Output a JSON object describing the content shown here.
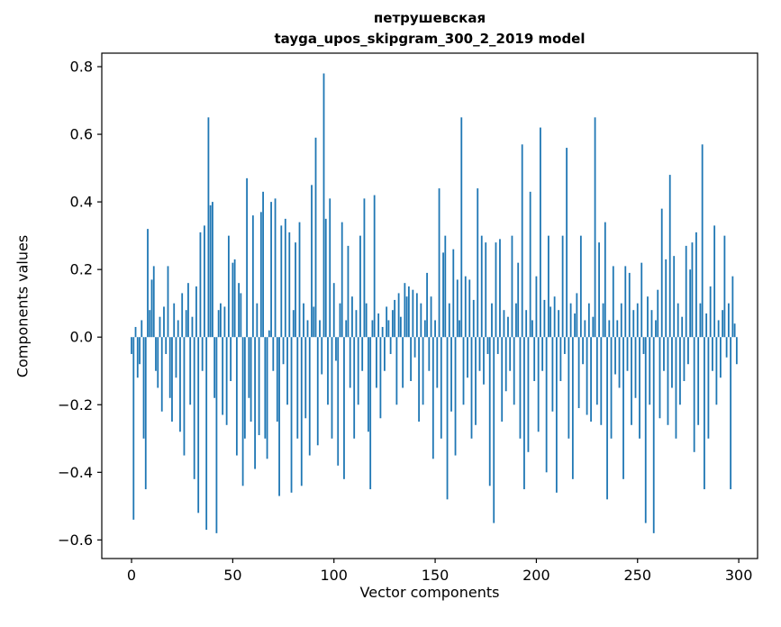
{
  "chart_data": {
    "type": "bar",
    "title": "петрушевская",
    "subtitle": "tayga_upos_skipgram_300_2_2019 model",
    "xlabel": "Vector components",
    "ylabel": "Components values",
    "bar_color": "#1f77b4",
    "grid": false,
    "legend": "none",
    "n_components": 300,
    "xlim": [
      -14.7,
      309.3
    ],
    "ylim": [
      -0.655,
      0.84
    ],
    "xticks": [
      0,
      50,
      100,
      150,
      200,
      250,
      300
    ],
    "yticks": [
      -0.6,
      -0.4,
      -0.2,
      0.0,
      0.2,
      0.4,
      0.6,
      0.8
    ],
    "values": [
      -0.05,
      -0.54,
      0.03,
      -0.12,
      -0.08,
      0.05,
      -0.3,
      -0.45,
      0.32,
      0.08,
      0.17,
      0.21,
      -0.1,
      -0.15,
      0.06,
      -0.22,
      0.09,
      -0.05,
      0.21,
      -0.18,
      -0.25,
      0.1,
      -0.12,
      0.05,
      -0.28,
      0.13,
      -0.35,
      0.08,
      0.16,
      -0.2,
      0.06,
      -0.42,
      0.15,
      -0.52,
      0.31,
      -0.1,
      0.33,
      -0.57,
      0.65,
      0.39,
      0.4,
      -0.18,
      -0.58,
      0.08,
      0.1,
      -0.23,
      0.09,
      -0.26,
      0.3,
      -0.13,
      0.22,
      0.23,
      -0.35,
      0.16,
      0.13,
      -0.44,
      -0.3,
      0.47,
      -0.18,
      -0.25,
      0.36,
      -0.39,
      0.1,
      -0.29,
      0.37,
      0.43,
      -0.3,
      -0.36,
      0.02,
      0.4,
      -0.1,
      0.41,
      -0.25,
      -0.47,
      0.33,
      -0.08,
      0.35,
      -0.2,
      0.31,
      -0.46,
      0.08,
      0.28,
      -0.3,
      0.34,
      -0.44,
      0.1,
      -0.24,
      0.05,
      -0.35,
      0.45,
      0.09,
      0.59,
      -0.32,
      0.05,
      -0.11,
      0.78,
      0.35,
      -0.2,
      0.41,
      -0.3,
      0.16,
      -0.07,
      -0.38,
      0.1,
      0.34,
      -0.42,
      0.05,
      0.27,
      -0.15,
      0.12,
      -0.3,
      0.08,
      -0.2,
      0.3,
      -0.1,
      0.41,
      0.1,
      -0.28,
      -0.45,
      0.05,
      0.42,
      -0.15,
      0.07,
      -0.24,
      0.03,
      -0.1,
      0.09,
      0.05,
      -0.05,
      0.08,
      0.11,
      -0.2,
      0.13,
      0.06,
      -0.15,
      0.16,
      0.12,
      0.15,
      -0.13,
      0.14,
      -0.06,
      0.13,
      -0.25,
      0.1,
      -0.2,
      0.05,
      0.19,
      -0.1,
      0.12,
      -0.36,
      0.05,
      -0.15,
      0.44,
      -0.3,
      0.25,
      0.3,
      -0.48,
      0.1,
      -0.22,
      0.26,
      -0.35,
      0.17,
      0.05,
      0.65,
      -0.2,
      0.18,
      -0.12,
      0.17,
      -0.3,
      0.11,
      -0.26,
      0.44,
      -0.1,
      0.3,
      -0.14,
      0.28,
      -0.05,
      -0.44,
      0.1,
      -0.55,
      0.28,
      -0.05,
      0.29,
      -0.25,
      0.08,
      -0.16,
      0.06,
      -0.1,
      0.3,
      -0.2,
      0.1,
      0.22,
      -0.3,
      0.57,
      -0.45,
      0.08,
      -0.34,
      0.43,
      0.05,
      -0.13,
      0.18,
      -0.28,
      0.62,
      -0.1,
      0.11,
      -0.4,
      0.3,
      0.09,
      -0.22,
      0.12,
      -0.46,
      0.08,
      -0.13,
      0.3,
      -0.05,
      0.56,
      -0.3,
      0.1,
      -0.42,
      0.07,
      0.13,
      -0.21,
      0.3,
      -0.08,
      0.05,
      -0.23,
      0.1,
      -0.25,
      0.06,
      0.65,
      -0.2,
      0.28,
      -0.26,
      0.1,
      0.34,
      -0.48,
      0.05,
      -0.3,
      0.21,
      -0.11,
      0.05,
      -0.15,
      0.1,
      -0.42,
      0.21,
      -0.1,
      0.19,
      -0.26,
      0.08,
      -0.18,
      0.1,
      -0.3,
      0.22,
      -0.05,
      -0.55,
      0.12,
      -0.2,
      0.08,
      -0.58,
      0.05,
      0.14,
      -0.24,
      0.38,
      -0.1,
      0.23,
      -0.26,
      0.48,
      -0.15,
      0.24,
      -0.3,
      0.1,
      -0.2,
      0.06,
      -0.13,
      0.27,
      -0.08,
      0.2,
      0.28,
      -0.34,
      0.31,
      -0.26,
      0.1,
      0.57,
      -0.45,
      0.07,
      -0.3,
      0.15,
      -0.1,
      0.33,
      -0.2,
      0.05,
      -0.12,
      0.08,
      0.3,
      -0.06,
      0.1,
      -0.45,
      0.18,
      0.04,
      -0.08
    ]
  }
}
